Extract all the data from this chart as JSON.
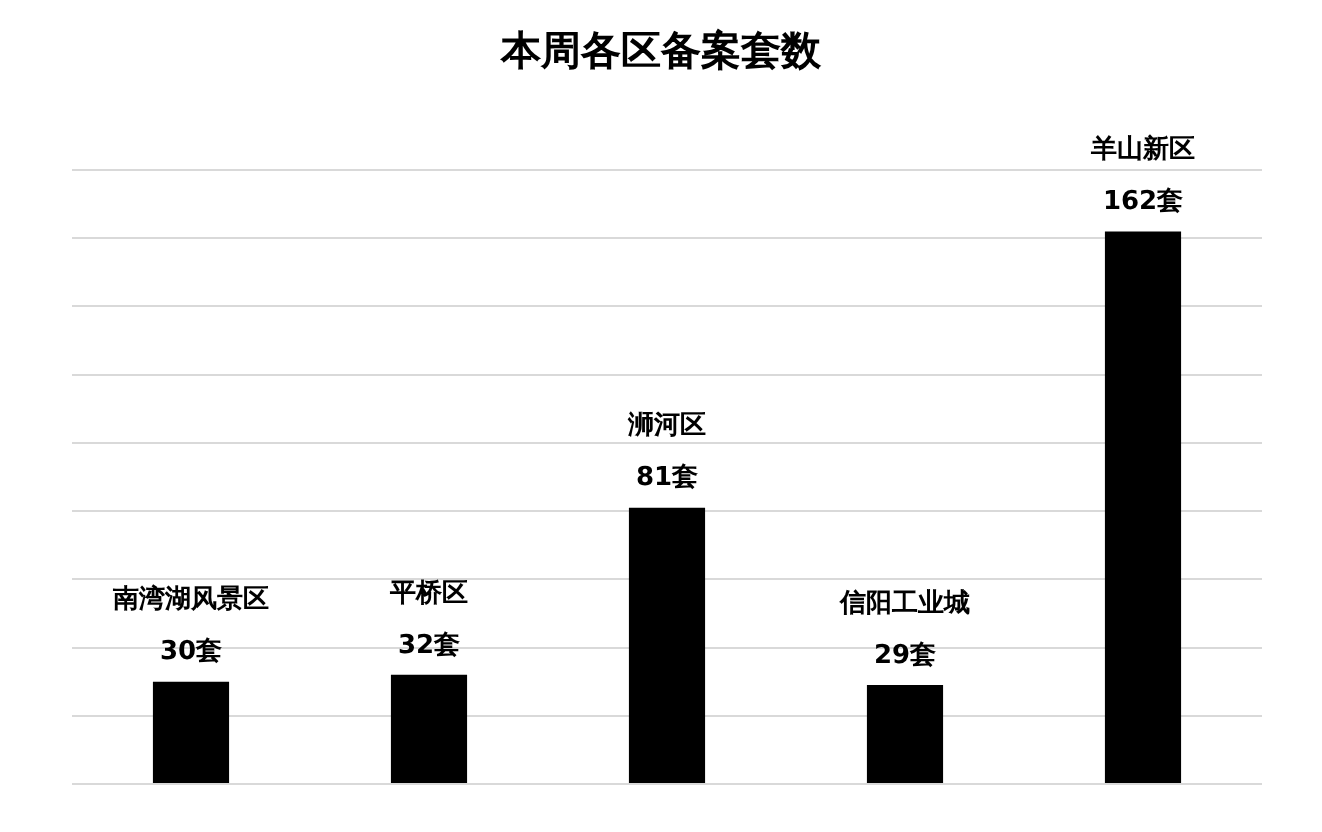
{
  "chart_data": {
    "type": "bar",
    "title": "本周各区备案套数",
    "categories": [
      "南湾湖风景区",
      "平桥区",
      "浉河区",
      "信阳工业城",
      "羊山新区"
    ],
    "values": [
      30,
      32,
      81,
      29,
      162
    ],
    "value_labels": [
      "30套",
      "32套",
      "81套",
      "29套",
      "162套"
    ],
    "color": "#000000",
    "ylim": [
      0,
      180
    ],
    "yticks": [
      {
        "value": 0,
        "label": null
      },
      {
        "value": 20,
        "label": null
      },
      {
        "value": 40,
        "label": null
      },
      {
        "value": 60,
        "label": null
      },
      {
        "value": 80,
        "label": null
      },
      {
        "value": 100,
        "label": null
      },
      {
        "value": 120,
        "label": null
      },
      {
        "value": 140,
        "label": null
      },
      {
        "value": 160,
        "label": null
      },
      {
        "value": 180,
        "label": null
      }
    ],
    "grid": "y"
  }
}
